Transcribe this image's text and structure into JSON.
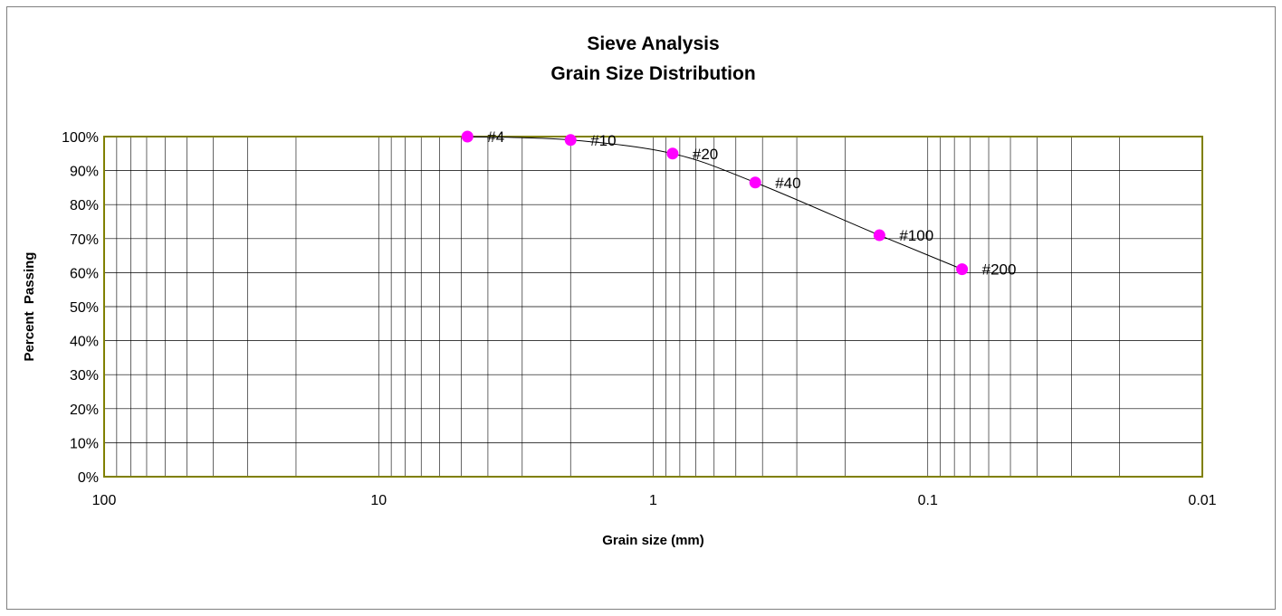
{
  "chart_data": {
    "type": "scatter",
    "title": "Sieve Analysis",
    "subtitle": "Grain Size Distribution",
    "xlabel": "Grain size (mm)",
    "ylabel": "Percent  Passing",
    "x_scale": "log",
    "x_reversed": true,
    "xlim": [
      100,
      0.01
    ],
    "ylim": [
      0,
      100
    ],
    "y_unit": "%",
    "x_ticks": [
      100,
      10,
      1,
      0.1,
      0.01
    ],
    "x_tick_labels": [
      "100",
      "10",
      "1",
      "0.1",
      "0.01"
    ],
    "y_ticks": [
      0,
      10,
      20,
      30,
      40,
      50,
      60,
      70,
      80,
      90,
      100
    ],
    "y_tick_labels": [
      "0%",
      "10%",
      "20%",
      "30%",
      "40%",
      "50%",
      "60%",
      "70%",
      "80%",
      "90%",
      "100%"
    ],
    "grid": true,
    "smoothed_line": true,
    "series": [
      {
        "x": [
          4.75,
          2.0,
          0.85,
          0.425,
          0.15,
          0.075
        ],
        "y": [
          100,
          99,
          95,
          86.5,
          71,
          61
        ],
        "point_labels": [
          "#4",
          "#10",
          "#20",
          "#40",
          "#100",
          "#200"
        ]
      }
    ],
    "colors": {
      "marker": "#ff00ff",
      "line": "#000000",
      "plot_border": "#808000",
      "grid": "#000000"
    }
  }
}
